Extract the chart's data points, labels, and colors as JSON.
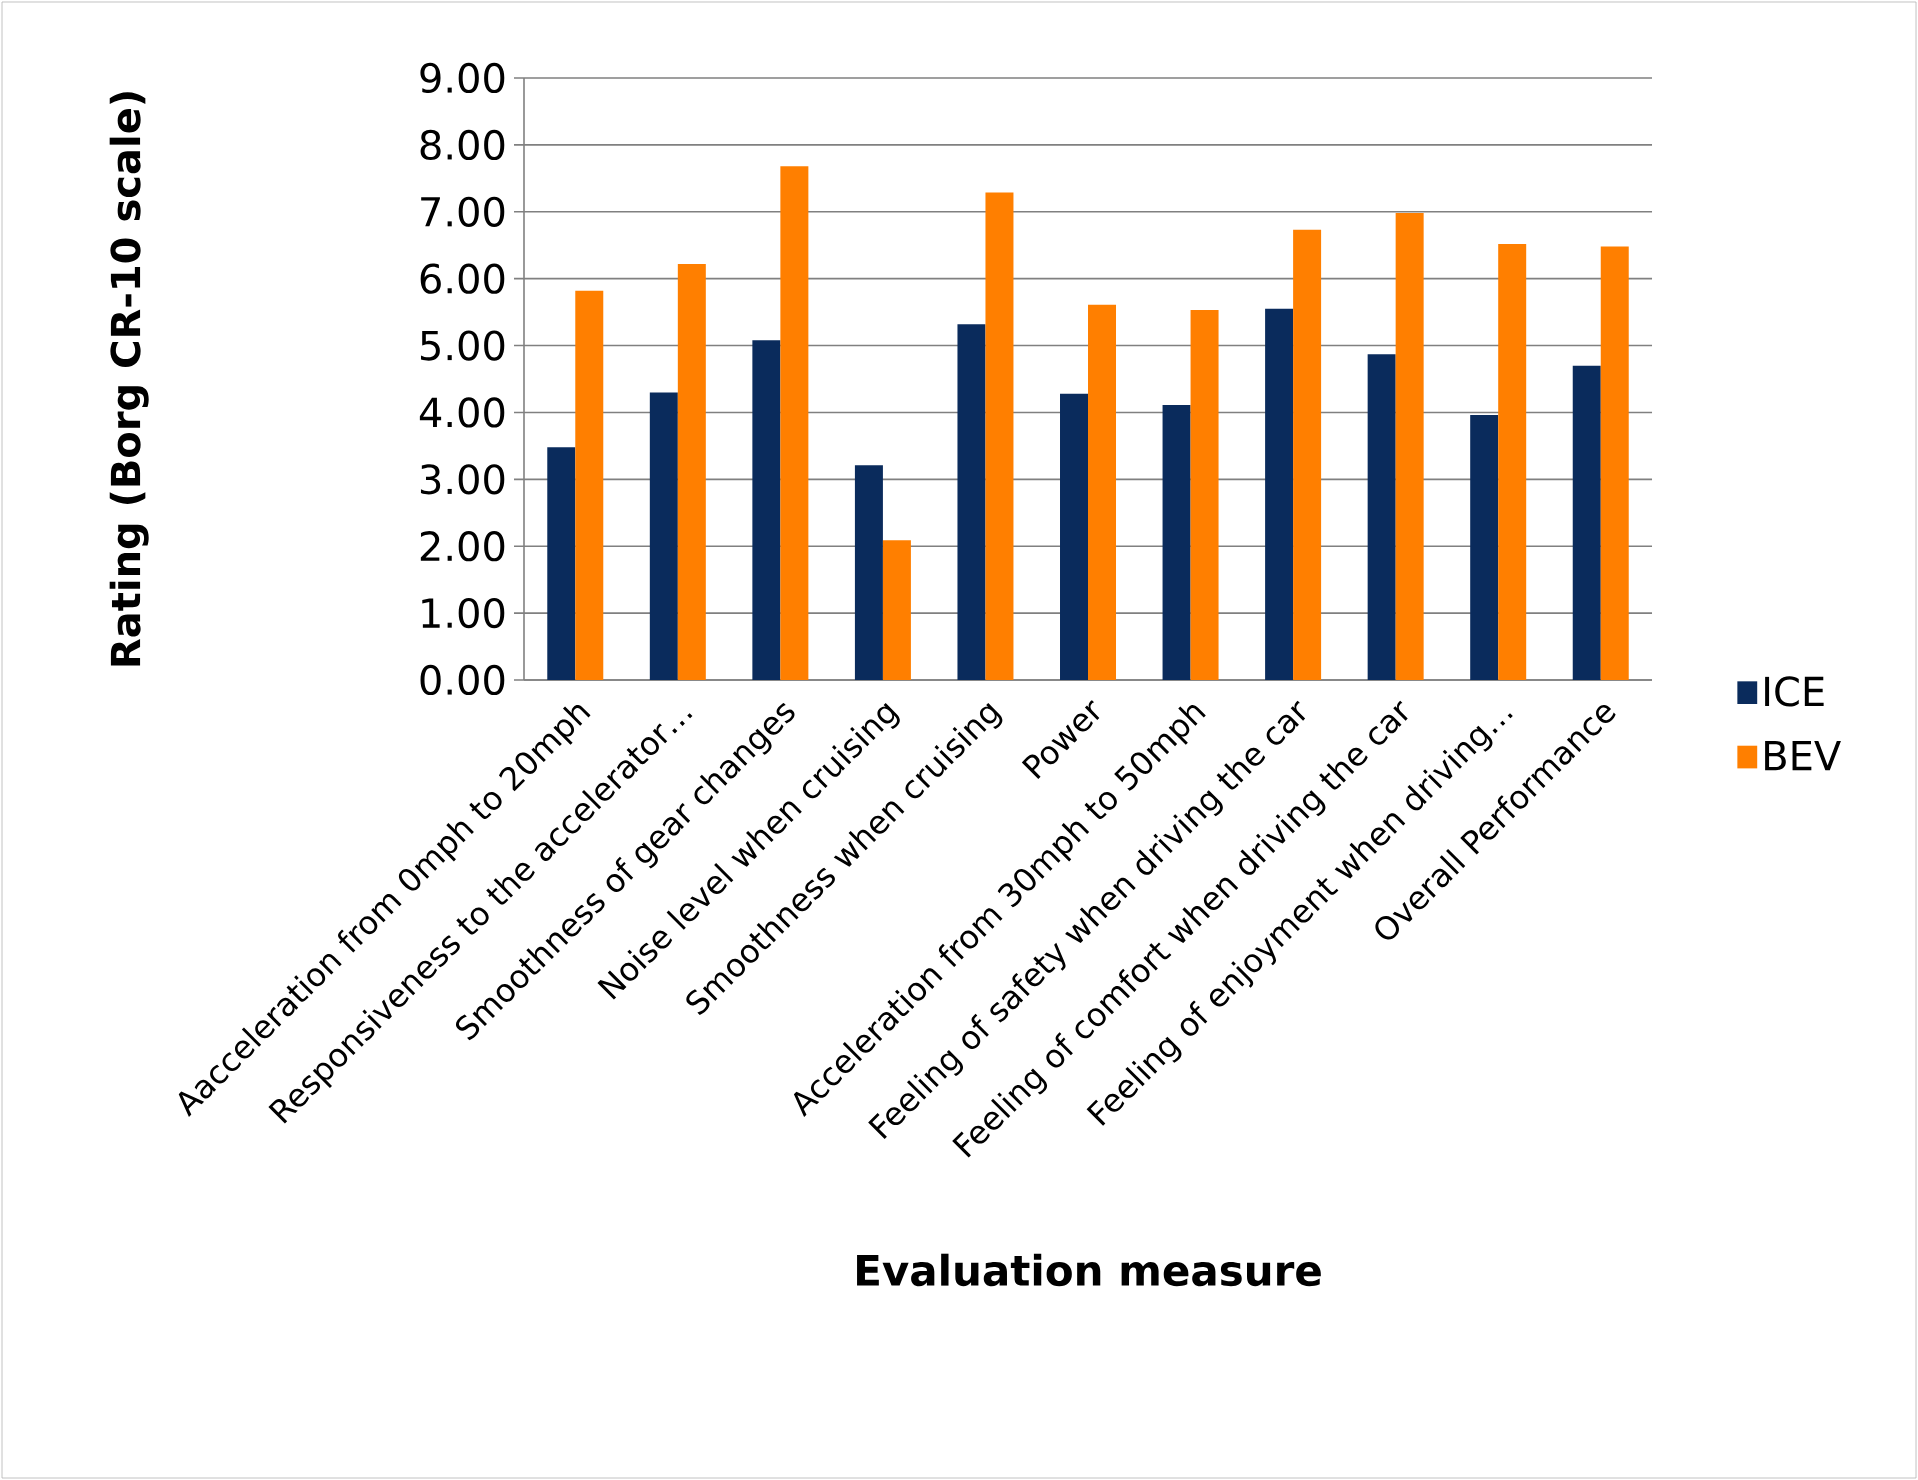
{
  "chart_data": {
    "type": "bar",
    "xlabel": "Evaluation measure",
    "ylabel": "Rating (Borg CR-10 scale)",
    "categories": [
      "Aacceleration from 0mph to 20mph",
      "Responsiveness to the accelerator…",
      "Smoothness of gear changes",
      "Noise level when cruising",
      "Smoothness when cruising",
      "Power",
      "Acceleration from 30mph to 50mph",
      "Feeling of safety when driving the car",
      "Feeling of comfort when driving the car",
      "Feeling of enjoyment when driving…",
      "Overall Performance"
    ],
    "series": [
      {
        "name": "ICE",
        "color": "#0a2b5c",
        "values": [
          3.48,
          4.3,
          5.08,
          3.21,
          5.32,
          4.28,
          4.11,
          5.55,
          4.87,
          3.96,
          4.7
        ]
      },
      {
        "name": "BEV",
        "color": "#ff7f00",
        "values": [
          5.82,
          6.22,
          7.68,
          2.09,
          7.29,
          5.61,
          5.53,
          6.73,
          6.98,
          6.52,
          6.48
        ]
      }
    ],
    "ylim": [
      0,
      9
    ],
    "yticks": [
      {
        "value": 0,
        "label": "0.00"
      },
      {
        "value": 1,
        "label": "1.00"
      },
      {
        "value": 2,
        "label": "2.00"
      },
      {
        "value": 3,
        "label": "3.00"
      },
      {
        "value": 4,
        "label": "4.00"
      },
      {
        "value": 5,
        "label": "5.00"
      },
      {
        "value": 6,
        "label": "6.00"
      },
      {
        "value": 7,
        "label": "7.00"
      },
      {
        "value": 8,
        "label": "8.00"
      },
      {
        "value": 9,
        "label": "9.00"
      }
    ],
    "grid": "y",
    "legend": "right"
  }
}
